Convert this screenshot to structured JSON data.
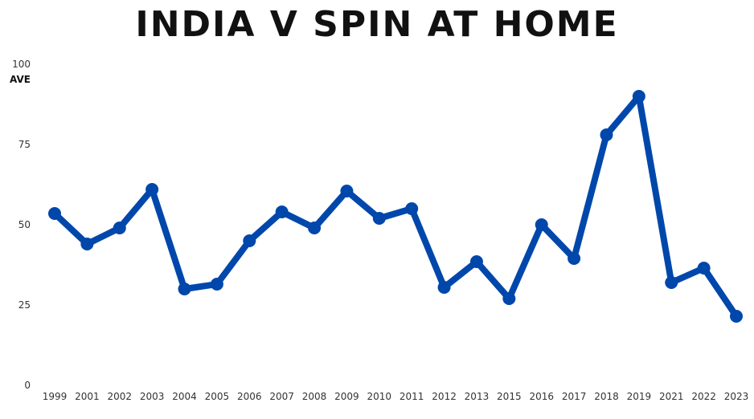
{
  "chart_data": {
    "type": "line",
    "title": "INDIA V SPIN AT HOME",
    "ylabel": "AVE",
    "xlabel": "",
    "ylim": [
      0,
      100
    ],
    "yticks": [
      0,
      25,
      50,
      75,
      100
    ],
    "grid": false,
    "line_color": "#0047AB",
    "categories": [
      "1999",
      "2001",
      "2002",
      "2003",
      "2004",
      "2005",
      "2006",
      "2007",
      "2008",
      "2009",
      "2010",
      "2011",
      "2012",
      "2013",
      "2015",
      "2016",
      "2017",
      "2018",
      "2019",
      "2021",
      "2022",
      "2023"
    ],
    "values": [
      53.5,
      44,
      49,
      61,
      30,
      31.5,
      45,
      54,
      49,
      60.5,
      52,
      55,
      30.5,
      38.5,
      27,
      50,
      39.5,
      78,
      90,
      32,
      36.5,
      21.5
    ]
  }
}
